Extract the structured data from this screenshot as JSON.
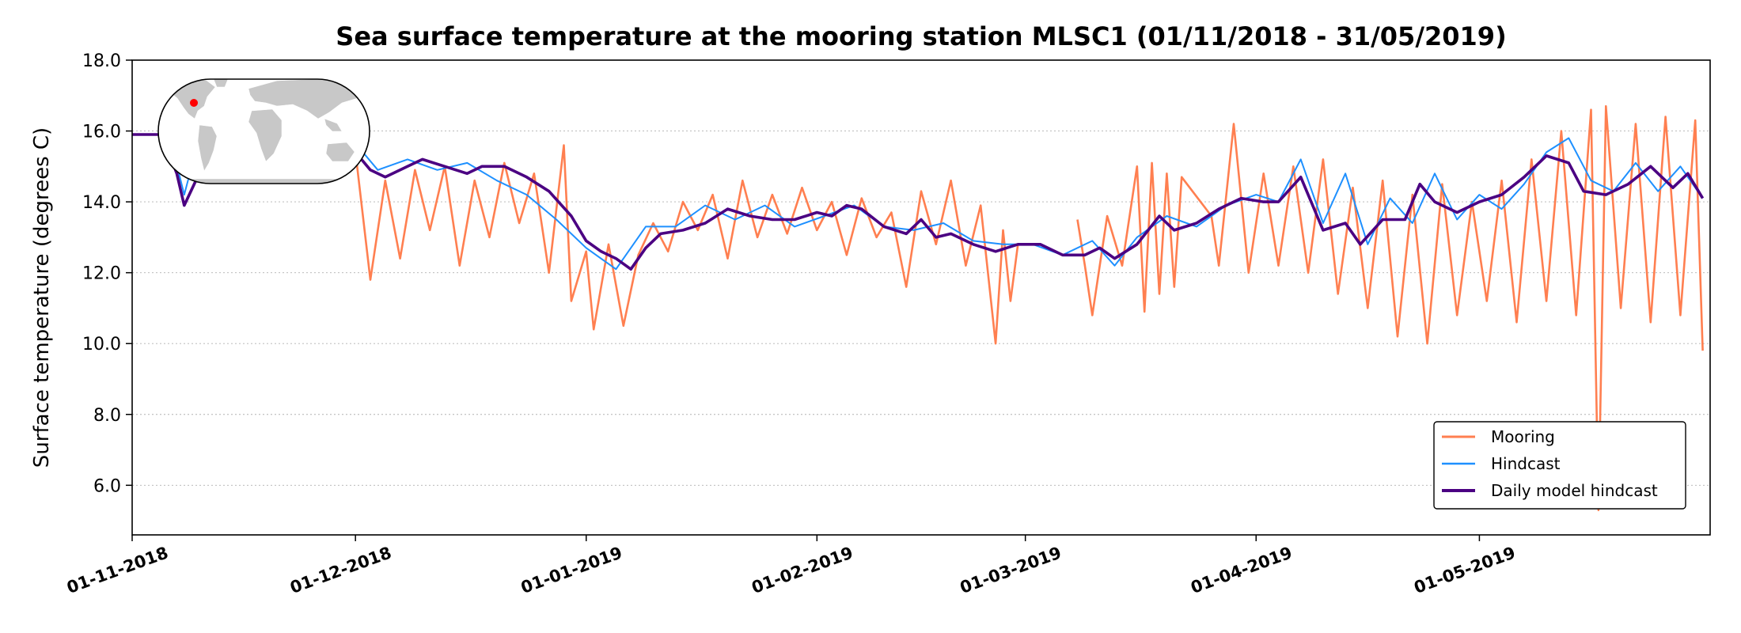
{
  "chart_data": {
    "type": "line",
    "title": "Sea surface temperature at the mooring station MLSC1 (01/11/2018 - 31/05/2019)",
    "xlabel": "",
    "ylabel": "Surface temperature (degrees C)",
    "ylim": [
      4.6,
      18.0
    ],
    "xlim": [
      "2018-11-01",
      "2019-06-01"
    ],
    "grid": "horizontal-dotted",
    "legend_position": "lower-right",
    "y_ticks": [
      "6.0",
      "8.0",
      "10.0",
      "12.0",
      "14.0",
      "16.0",
      "18.0"
    ],
    "x_ticks": [
      {
        "date": "2018-11-01",
        "label": "01-11-2018"
      },
      {
        "date": "2018-12-01",
        "label": "01-12-2018"
      },
      {
        "date": "2019-01-01",
        "label": "01-01-2019"
      },
      {
        "date": "2019-02-01",
        "label": "01-02-2019"
      },
      {
        "date": "2019-03-01",
        "label": "01-03-2019"
      },
      {
        "date": "2019-04-01",
        "label": "01-04-2019"
      },
      {
        "date": "2019-05-01",
        "label": "01-05-2019"
      }
    ],
    "inset": {
      "type": "world-map",
      "marker": "station-location",
      "marker_color": "#ff0000"
    },
    "series": [
      {
        "name": "Mooring",
        "color": "#ff7f50",
        "points": [
          [
            "2018-12-01",
            15.4
          ],
          [
            "2018-12-03",
            11.8
          ],
          [
            "2018-12-05",
            14.6
          ],
          [
            "2018-12-07",
            12.4
          ],
          [
            "2018-12-09",
            14.9
          ],
          [
            "2018-12-11",
            13.2
          ],
          [
            "2018-12-13",
            15.0
          ],
          [
            "2018-12-15",
            12.2
          ],
          [
            "2018-12-17",
            14.6
          ],
          [
            "2018-12-19",
            13.0
          ],
          [
            "2018-12-21",
            15.1
          ],
          [
            "2018-12-23",
            13.4
          ],
          [
            "2018-12-25",
            14.8
          ],
          [
            "2018-12-27",
            12.0
          ],
          [
            "2018-12-29",
            15.6
          ],
          [
            "2018-12-30",
            11.2
          ],
          [
            "2019-01-01",
            12.6
          ],
          [
            "2019-01-02",
            10.4
          ],
          [
            "2019-01-04",
            12.8
          ],
          [
            "2019-01-06",
            10.5
          ],
          [
            "2019-01-08",
            12.5
          ],
          [
            "2019-01-10",
            13.4
          ],
          [
            "2019-01-12",
            12.6
          ],
          [
            "2019-01-14",
            14.0
          ],
          [
            "2019-01-16",
            13.2
          ],
          [
            "2019-01-18",
            14.2
          ],
          [
            "2019-01-20",
            12.4
          ],
          [
            "2019-01-22",
            14.6
          ],
          [
            "2019-01-24",
            13.0
          ],
          [
            "2019-01-26",
            14.2
          ],
          [
            "2019-01-28",
            13.1
          ],
          [
            "2019-01-30",
            14.4
          ],
          [
            "2019-02-01",
            13.2
          ],
          [
            "2019-02-03",
            14.0
          ],
          [
            "2019-02-05",
            12.5
          ],
          [
            "2019-02-07",
            14.1
          ],
          [
            "2019-02-09",
            13.0
          ],
          [
            "2019-02-11",
            13.7
          ],
          [
            "2019-02-13",
            11.6
          ],
          [
            "2019-02-15",
            14.3
          ],
          [
            "2019-02-17",
            12.8
          ],
          [
            "2019-02-19",
            14.6
          ],
          [
            "2019-02-21",
            12.2
          ],
          [
            "2019-02-23",
            13.9
          ],
          [
            "2019-02-25",
            10.0
          ],
          [
            "2019-02-26",
            13.2
          ],
          [
            "2019-02-27",
            11.2
          ],
          [
            "2019-02-28",
            12.8
          ],
          [
            "2019-03-08",
            13.5
          ],
          [
            "2019-03-09",
            12.2
          ],
          [
            "2019-03-10",
            10.8
          ],
          [
            "2019-03-12",
            13.6
          ],
          [
            "2019-03-14",
            12.2
          ],
          [
            "2019-03-16",
            15.0
          ],
          [
            "2019-03-17",
            10.9
          ],
          [
            "2019-03-18",
            15.1
          ],
          [
            "2019-03-19",
            11.4
          ],
          [
            "2019-03-20",
            14.8
          ],
          [
            "2019-03-21",
            11.6
          ],
          [
            "2019-03-22",
            14.7
          ],
          [
            "2019-03-26",
            13.6
          ],
          [
            "2019-03-27",
            12.2
          ],
          [
            "2019-03-29",
            16.2
          ],
          [
            "2019-03-31",
            12.0
          ],
          [
            "2019-04-02",
            14.8
          ],
          [
            "2019-04-04",
            12.2
          ],
          [
            "2019-04-06",
            15.0
          ],
          [
            "2019-04-08",
            12.0
          ],
          [
            "2019-04-10",
            15.2
          ],
          [
            "2019-04-12",
            11.4
          ],
          [
            "2019-04-14",
            14.4
          ],
          [
            "2019-04-16",
            11.0
          ],
          [
            "2019-04-18",
            14.6
          ],
          [
            "2019-04-20",
            10.2
          ],
          [
            "2019-04-22",
            14.2
          ],
          [
            "2019-04-24",
            10.0
          ],
          [
            "2019-04-26",
            14.5
          ],
          [
            "2019-04-28",
            10.8
          ],
          [
            "2019-04-30",
            14.0
          ],
          [
            "2019-05-02",
            11.2
          ],
          [
            "2019-05-04",
            14.6
          ],
          [
            "2019-05-06",
            10.6
          ],
          [
            "2019-05-08",
            15.2
          ],
          [
            "2019-05-10",
            11.2
          ],
          [
            "2019-05-12",
            16.0
          ],
          [
            "2019-05-14",
            10.8
          ],
          [
            "2019-05-16",
            16.6
          ],
          [
            "2019-05-17",
            5.3
          ],
          [
            "2019-05-18",
            16.7
          ],
          [
            "2019-05-20",
            11.0
          ],
          [
            "2019-05-22",
            16.2
          ],
          [
            "2019-05-24",
            10.6
          ],
          [
            "2019-05-26",
            16.4
          ],
          [
            "2019-05-28",
            10.8
          ],
          [
            "2019-05-30",
            16.3
          ],
          [
            "2019-05-31",
            9.8
          ]
        ]
      },
      {
        "name": "Hindcast",
        "color": "#1e90ff",
        "points": [
          [
            "2018-11-01",
            15.9
          ],
          [
            "2018-11-06",
            15.9
          ],
          [
            "2018-11-08",
            14.2
          ],
          [
            "2018-11-10",
            15.8
          ],
          [
            "2018-11-30",
            15.9
          ],
          [
            "2018-12-04",
            14.9
          ],
          [
            "2018-12-08",
            15.2
          ],
          [
            "2018-12-12",
            14.9
          ],
          [
            "2018-12-16",
            15.1
          ],
          [
            "2018-12-20",
            14.6
          ],
          [
            "2018-12-24",
            14.2
          ],
          [
            "2018-12-28",
            13.5
          ],
          [
            "2019-01-01",
            12.7
          ],
          [
            "2019-01-05",
            12.1
          ],
          [
            "2019-01-09",
            13.3
          ],
          [
            "2019-01-13",
            13.3
          ],
          [
            "2019-01-17",
            13.9
          ],
          [
            "2019-01-21",
            13.5
          ],
          [
            "2019-01-25",
            13.9
          ],
          [
            "2019-01-29",
            13.3
          ],
          [
            "2019-02-02",
            13.6
          ],
          [
            "2019-02-06",
            13.9
          ],
          [
            "2019-02-10",
            13.3
          ],
          [
            "2019-02-14",
            13.2
          ],
          [
            "2019-02-18",
            13.4
          ],
          [
            "2019-02-22",
            12.9
          ],
          [
            "2019-02-26",
            12.8
          ],
          [
            "2019-03-02",
            12.8
          ],
          [
            "2019-03-06",
            12.5
          ],
          [
            "2019-03-10",
            12.9
          ],
          [
            "2019-03-13",
            12.2
          ],
          [
            "2019-03-16",
            13.0
          ],
          [
            "2019-03-20",
            13.6
          ],
          [
            "2019-03-24",
            13.3
          ],
          [
            "2019-03-28",
            13.9
          ],
          [
            "2019-04-01",
            14.2
          ],
          [
            "2019-04-04",
            14.0
          ],
          [
            "2019-04-07",
            15.2
          ],
          [
            "2019-04-10",
            13.4
          ],
          [
            "2019-04-13",
            14.8
          ],
          [
            "2019-04-16",
            12.8
          ],
          [
            "2019-04-19",
            14.1
          ],
          [
            "2019-04-22",
            13.4
          ],
          [
            "2019-04-25",
            14.8
          ],
          [
            "2019-04-28",
            13.5
          ],
          [
            "2019-05-01",
            14.2
          ],
          [
            "2019-05-04",
            13.8
          ],
          [
            "2019-05-07",
            14.5
          ],
          [
            "2019-05-10",
            15.4
          ],
          [
            "2019-05-13",
            15.8
          ],
          [
            "2019-05-16",
            14.6
          ],
          [
            "2019-05-19",
            14.3
          ],
          [
            "2019-05-22",
            15.1
          ],
          [
            "2019-05-25",
            14.3
          ],
          [
            "2019-05-28",
            15.0
          ],
          [
            "2019-05-31",
            14.1
          ]
        ]
      },
      {
        "name": "Daily model hindcast",
        "color": "#4b0082",
        "points": [
          [
            "2018-11-01",
            15.9
          ],
          [
            "2018-11-05",
            15.9
          ],
          [
            "2018-11-07",
            14.8
          ],
          [
            "2018-11-08",
            13.9
          ],
          [
            "2018-11-10",
            14.8
          ],
          [
            "2018-11-14",
            15.9
          ],
          [
            "2018-11-28",
            15.9
          ],
          [
            "2018-12-01",
            15.4
          ],
          [
            "2018-12-03",
            14.9
          ],
          [
            "2018-12-05",
            14.7
          ],
          [
            "2018-12-08",
            15.0
          ],
          [
            "2018-12-10",
            15.2
          ],
          [
            "2018-12-13",
            15.0
          ],
          [
            "2018-12-16",
            14.8
          ],
          [
            "2018-12-18",
            15.0
          ],
          [
            "2018-12-21",
            15.0
          ],
          [
            "2018-12-24",
            14.7
          ],
          [
            "2018-12-27",
            14.3
          ],
          [
            "2018-12-30",
            13.6
          ],
          [
            "2019-01-01",
            12.9
          ],
          [
            "2019-01-03",
            12.6
          ],
          [
            "2019-01-05",
            12.4
          ],
          [
            "2019-01-07",
            12.1
          ],
          [
            "2019-01-09",
            12.7
          ],
          [
            "2019-01-11",
            13.1
          ],
          [
            "2019-01-14",
            13.2
          ],
          [
            "2019-01-17",
            13.4
          ],
          [
            "2019-01-20",
            13.8
          ],
          [
            "2019-01-23",
            13.6
          ],
          [
            "2019-01-26",
            13.5
          ],
          [
            "2019-01-29",
            13.5
          ],
          [
            "2019-02-01",
            13.7
          ],
          [
            "2019-02-03",
            13.6
          ],
          [
            "2019-02-05",
            13.9
          ],
          [
            "2019-02-07",
            13.8
          ],
          [
            "2019-02-10",
            13.3
          ],
          [
            "2019-02-13",
            13.1
          ],
          [
            "2019-02-15",
            13.5
          ],
          [
            "2019-02-17",
            13.0
          ],
          [
            "2019-02-19",
            13.1
          ],
          [
            "2019-02-22",
            12.8
          ],
          [
            "2019-02-25",
            12.6
          ],
          [
            "2019-02-28",
            12.8
          ],
          [
            "2019-03-03",
            12.8
          ],
          [
            "2019-03-06",
            12.5
          ],
          [
            "2019-03-09",
            12.5
          ],
          [
            "2019-03-11",
            12.7
          ],
          [
            "2019-03-13",
            12.4
          ],
          [
            "2019-03-16",
            12.8
          ],
          [
            "2019-03-19",
            13.6
          ],
          [
            "2019-03-21",
            13.2
          ],
          [
            "2019-03-24",
            13.4
          ],
          [
            "2019-03-27",
            13.8
          ],
          [
            "2019-03-30",
            14.1
          ],
          [
            "2019-04-02",
            14.0
          ],
          [
            "2019-04-04",
            14.0
          ],
          [
            "2019-04-07",
            14.7
          ],
          [
            "2019-04-10",
            13.2
          ],
          [
            "2019-04-13",
            13.4
          ],
          [
            "2019-04-15",
            12.8
          ],
          [
            "2019-04-18",
            13.5
          ],
          [
            "2019-04-21",
            13.5
          ],
          [
            "2019-04-23",
            14.5
          ],
          [
            "2019-04-25",
            14.0
          ],
          [
            "2019-04-28",
            13.7
          ],
          [
            "2019-05-01",
            14.0
          ],
          [
            "2019-05-04",
            14.2
          ],
          [
            "2019-05-07",
            14.7
          ],
          [
            "2019-05-10",
            15.3
          ],
          [
            "2019-05-13",
            15.1
          ],
          [
            "2019-05-15",
            14.3
          ],
          [
            "2019-05-18",
            14.2
          ],
          [
            "2019-05-21",
            14.5
          ],
          [
            "2019-05-24",
            15.0
          ],
          [
            "2019-05-27",
            14.4
          ],
          [
            "2019-05-29",
            14.8
          ],
          [
            "2019-05-31",
            14.1
          ]
        ]
      }
    ]
  }
}
